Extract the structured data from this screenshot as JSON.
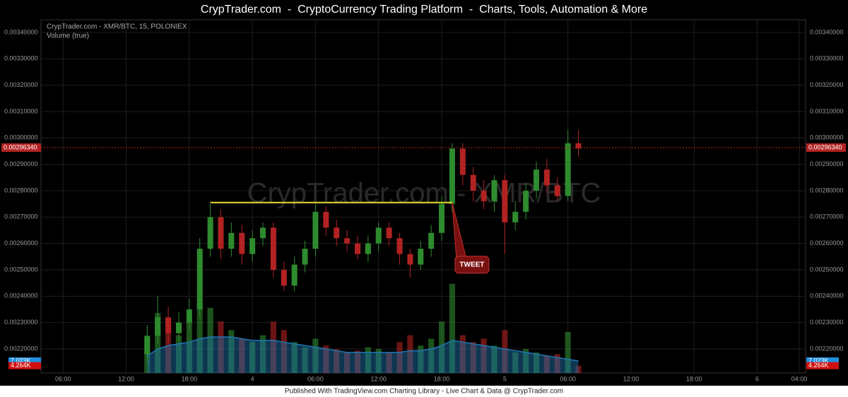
{
  "header": {
    "title": "CrypTrader.com  -  CryptoCurrency Trading Platform  -  Charts, Tools, Automation & More"
  },
  "chart_data": {
    "type": "candlestick",
    "legend_title": "CrypTrader.com - XMR/BTC, 15, POLONIEX",
    "volume_label": "Volume (true)",
    "watermark": "CrypTrader.com - XMR/BTC",
    "x": [
      14,
      15,
      16,
      17,
      18,
      19,
      20,
      21,
      22,
      23,
      24,
      25,
      26,
      27,
      28,
      29,
      30,
      31,
      32,
      33,
      34,
      35,
      36,
      37,
      38,
      39,
      40,
      41,
      42,
      43,
      44,
      45,
      46,
      47,
      48,
      49,
      50,
      51,
      52,
      53,
      54,
      55
    ],
    "open": [
      0.00218,
      0.00225,
      0.00232,
      0.00226,
      0.0023,
      0.00235,
      0.00258,
      0.0027,
      0.00258,
      0.00264,
      0.00256,
      0.00262,
      0.00266,
      0.0025,
      0.00244,
      0.00252,
      0.00258,
      0.00272,
      0.00266,
      0.00262,
      0.0026,
      0.00256,
      0.0026,
      0.00266,
      0.00262,
      0.00256,
      0.00252,
      0.00258,
      0.00264,
      0.00275,
      0.00296,
      0.00286,
      0.0028,
      0.00276,
      0.00284,
      0.00268,
      0.00272,
      0.0028,
      0.00288,
      0.00282,
      0.00278,
      0.00298
    ],
    "high": [
      0.00229,
      0.0024,
      0.00236,
      0.00234,
      0.00239,
      0.00262,
      0.00275,
      0.00273,
      0.00268,
      0.00267,
      0.00265,
      0.00268,
      0.00268,
      0.00253,
      0.00255,
      0.00261,
      0.00275,
      0.00274,
      0.00269,
      0.00265,
      0.00263,
      0.00263,
      0.00268,
      0.00268,
      0.00264,
      0.00258,
      0.00261,
      0.00267,
      0.00278,
      0.00298,
      0.00298,
      0.00289,
      0.00284,
      0.00286,
      0.00286,
      0.00276,
      0.00283,
      0.00291,
      0.00292,
      0.00285,
      0.00303,
      0.00303
    ],
    "low": [
      0.00215,
      0.00222,
      0.00222,
      0.00223,
      0.00227,
      0.00232,
      0.00255,
      0.00254,
      0.00255,
      0.00252,
      0.00253,
      0.00259,
      0.00247,
      0.00242,
      0.00242,
      0.00249,
      0.00255,
      0.00263,
      0.00259,
      0.00257,
      0.00254,
      0.00253,
      0.00257,
      0.00259,
      0.00252,
      0.00247,
      0.0025,
      0.00255,
      0.00261,
      0.00272,
      0.00282,
      0.00276,
      0.00273,
      0.00272,
      0.00256,
      0.00265,
      0.00269,
      0.00277,
      0.00279,
      0.00276,
      0.00276,
      0.00293
    ],
    "close": [
      0.00225,
      0.00232,
      0.00226,
      0.0023,
      0.00235,
      0.00258,
      0.0027,
      0.00258,
      0.00264,
      0.00256,
      0.00262,
      0.00266,
      0.0025,
      0.00244,
      0.00252,
      0.00258,
      0.00272,
      0.00266,
      0.00262,
      0.0026,
      0.00256,
      0.0026,
      0.00266,
      0.00262,
      0.00256,
      0.00252,
      0.00258,
      0.00264,
      0.00275,
      0.00296,
      0.00286,
      0.0028,
      0.00276,
      0.00284,
      0.00268,
      0.00272,
      0.0028,
      0.00288,
      0.00282,
      0.00278,
      0.00298,
      0.00296
    ],
    "up_color": "#2e8b2e",
    "down_color": "#b22222",
    "volume": {
      "values": [
        20,
        35,
        28,
        22,
        30,
        40,
        38,
        30,
        25,
        20,
        18,
        22,
        30,
        25,
        18,
        15,
        20,
        16,
        14,
        12,
        13,
        15,
        14,
        12,
        18,
        22,
        16,
        20,
        30,
        52,
        22,
        18,
        20,
        16,
        25,
        12,
        14,
        12,
        10,
        11,
        24,
        4.264
      ],
      "ma": [
        10,
        14,
        16,
        17,
        18,
        20,
        21,
        21,
        21,
        20,
        19,
        19,
        19,
        18,
        17,
        16,
        15,
        14,
        13,
        12,
        12,
        12,
        12,
        12,
        12,
        13,
        13,
        14,
        16,
        19,
        18,
        17,
        16,
        15,
        14,
        13,
        12,
        11,
        10,
        9,
        8,
        7.023
      ],
      "ylim": [
        0,
        206
      ],
      "ma_color": "#1f77b4",
      "ma_label": {
        "value": 7.023,
        "label": "7.023K"
      },
      "last_label": {
        "value": 4.264,
        "label": "4.264K"
      }
    },
    "last_price": {
      "value": 0.0029634,
      "label": "0.00296340"
    },
    "trendline": {
      "price": 0.002755,
      "x": [
        20,
        43
      ],
      "color": "#e8e030"
    },
    "annotation": {
      "text": "TWEET",
      "x": 43,
      "price": 0.002755
    },
    "xlim": [
      3.9,
      76.6
    ],
    "xticks": [
      {
        "value": 6,
        "label": "06:00"
      },
      {
        "value": 12,
        "label": "12:00"
      },
      {
        "value": 18,
        "label": "18:00"
      },
      {
        "value": 24,
        "label": "4"
      },
      {
        "value": 30,
        "label": "06:00"
      },
      {
        "value": 36,
        "label": "12:00"
      },
      {
        "value": 42,
        "label": "18:00"
      },
      {
        "value": 48,
        "label": "5"
      },
      {
        "value": 54,
        "label": "06:00"
      },
      {
        "value": 60,
        "label": "12:00"
      },
      {
        "value": 66,
        "label": "18:00"
      },
      {
        "value": 72,
        "label": "6"
      },
      {
        "value": 76,
        "label": "04:00"
      }
    ],
    "ylim": [
      0.002109,
      0.003448
    ],
    "yticks": [
      {
        "value": 0.0022,
        "label": "0.00220000"
      },
      {
        "value": 0.0023,
        "label": "0.00230000"
      },
      {
        "value": 0.0024,
        "label": "0.00240000"
      },
      {
        "value": 0.0025,
        "label": "0.00250000"
      },
      {
        "value": 0.0026,
        "label": "0.00260000"
      },
      {
        "value": 0.0027,
        "label": "0.00270000"
      },
      {
        "value": 0.0028,
        "label": "0.00280000"
      },
      {
        "value": 0.0029,
        "label": "0.00290000"
      },
      {
        "value": 0.003,
        "label": "0.00300000"
      },
      {
        "value": 0.0031,
        "label": "0.00310000"
      },
      {
        "value": 0.0032,
        "label": "0.00320000"
      },
      {
        "value": 0.0033,
        "label": "0.00330000"
      },
      {
        "value": 0.0034,
        "label": "0.00340000"
      }
    ],
    "grid": true
  },
  "footer": {
    "text": "Published With TradingView.com Charting Library - Live Chart & Data @ CrypTrader.com"
  }
}
